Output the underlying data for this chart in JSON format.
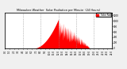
{
  "title": "Milwaukee Weather  Solar Radiation per Minute  (24 Hours)",
  "bg_color": "#f0f0f0",
  "plot_bg_color": "#ffffff",
  "fill_color": "#ff0000",
  "line_color": "#dd0000",
  "grid_color": "#888888",
  "legend_color": "#ff0000",
  "legend_text": "Solar Rad",
  "ylim": [
    0,
    1300
  ],
  "xlim": [
    0,
    1440
  ],
  "num_points": 1440,
  "peak_minute": 720,
  "peak_value": 1050,
  "sunrise_minute": 380,
  "sunset_minute": 1140,
  "grid_lines_x": [
    240,
    480,
    720,
    960,
    1200
  ],
  "xtick_positions": [
    0,
    60,
    120,
    180,
    240,
    300,
    360,
    420,
    480,
    540,
    600,
    660,
    720,
    780,
    840,
    900,
    960,
    1020,
    1080,
    1140,
    1200,
    1260,
    1320,
    1380,
    1440
  ],
  "xtick_labels": [
    "0:0",
    "1:0",
    "2:0",
    "3:0",
    "4:0",
    "5:0",
    "6:0",
    "7:0",
    "8:0",
    "9:0",
    "10:0",
    "11:0",
    "12:0",
    "13:0",
    "14:0",
    "15:0",
    "16:0",
    "17:0",
    "18:0",
    "19:0",
    "20:0",
    "21:0",
    "22:0",
    "23:0",
    "24:0"
  ],
  "ytick_positions": [
    0,
    200,
    400,
    600,
    800,
    1000,
    1200
  ],
  "ytick_labels": [
    "0",
    "200",
    "400",
    "600",
    "800",
    "1000",
    "1200"
  ]
}
